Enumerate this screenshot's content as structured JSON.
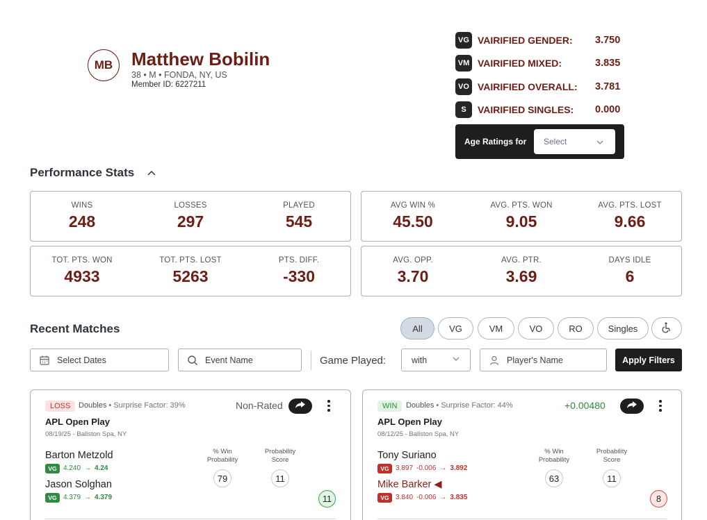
{
  "profile": {
    "initials": "MB",
    "name": "Matthew Bobilin",
    "meta": "38 • M • FONDA, NY, US",
    "member_id": "Member ID: 6227211"
  },
  "ratings": [
    {
      "badge": "VG",
      "label": "VAIRIFIED GENDER:",
      "value": "3.750"
    },
    {
      "badge": "VM",
      "label": "VAIRIFIED MIXED:",
      "value": "3.835"
    },
    {
      "badge": "VO",
      "label": "VAIRIFIED OVERALL:",
      "value": "3.781"
    },
    {
      "badge": "S",
      "label": "VAIRIFIED SINGLES:",
      "value": "0.000"
    }
  ],
  "age_ratings": {
    "label": "Age Ratings for",
    "select": "Select"
  },
  "performance": {
    "title": "Performance Stats",
    "boxes": [
      [
        {
          "label": "WINS",
          "value": "248"
        },
        {
          "label": "LOSSES",
          "value": "297"
        },
        {
          "label": "PLAYED",
          "value": "545"
        }
      ],
      [
        {
          "label": "AVG WIN %",
          "value": "45.50"
        },
        {
          "label": "AVG. PTS. WON",
          "value": "9.05"
        },
        {
          "label": "AVG. PTS. LOST",
          "value": "9.66"
        }
      ],
      [
        {
          "label": "TOT. PTS. WON",
          "value": "4933"
        },
        {
          "label": "TOT. PTS. LOST",
          "value": "5263"
        },
        {
          "label": "PTS. DIFF.",
          "value": "-330"
        }
      ],
      [
        {
          "label": "AVG. OPP.",
          "value": "3.70"
        },
        {
          "label": "AVG. PTR.",
          "value": "3.69"
        },
        {
          "label": "DAYS IDLE",
          "value": "6"
        }
      ]
    ]
  },
  "recent": {
    "title": "Recent Matches",
    "filters": [
      "All",
      "VG",
      "VM",
      "VO",
      "RO",
      "Singles"
    ],
    "select_dates": "Select Dates",
    "event_placeholder": "Event Name",
    "game_played_label": "Game Played:",
    "game_played_value": "with",
    "player_placeholder": "Player's Name",
    "apply": "Apply Filters"
  },
  "matches": [
    {
      "result": "LOSS",
      "type": "Doubles",
      "surprise": "Surprise Factor: 39%",
      "status": "Non-Rated",
      "status_color": "#555b63",
      "title": "APL Open Play",
      "date": "08/19/25 - Ballston Spa, NY",
      "win_prob_label": "% Win Probability",
      "prob_score_label": "Probability Score",
      "win_prob": "79",
      "prob_score": "11",
      "score": "11",
      "players": [
        {
          "name": "Barton Metzold",
          "badge": "VG",
          "old": "4.240",
          "arrow": "→",
          "delta": "",
          "new": "4.24"
        },
        {
          "name": "Jason Solghan",
          "badge": "VG",
          "old": "4.379",
          "arrow": "→",
          "delta": "",
          "new": "4.379"
        }
      ]
    },
    {
      "result": "WIN",
      "type": "Doubles",
      "surprise": "Surprise Factor: 44%",
      "status": "+0.00480",
      "status_color": "#2e8b3f",
      "title": "APL Open Play",
      "date": "08/12/25 - Ballston Spa, NY",
      "win_prob_label": "% Win Probability",
      "prob_score_label": "Probability Score",
      "win_prob": "63",
      "prob_score": "11",
      "score": "8",
      "players": [
        {
          "name": "Tony Suriano",
          "badge": "VG",
          "old": "3.897",
          "delta": "-0.006",
          "arrow": "→",
          "new": "3.892"
        },
        {
          "name": "Mike Barker ◀",
          "badge": "VG",
          "old": "3.840",
          "delta": "-0.006",
          "arrow": "→",
          "new": "3.835"
        }
      ]
    }
  ],
  "colors": {
    "accent": "#6e1d14",
    "dark": "#1e1e1e",
    "win": "#2e8b3f",
    "loss": "#c0312d"
  },
  "icons": [
    "calendar-icon",
    "search-icon",
    "user-icon",
    "chevron-down-icon",
    "share-icon",
    "more-vertical-icon",
    "wheelchair-icon",
    "chevron-up-icon"
  ]
}
